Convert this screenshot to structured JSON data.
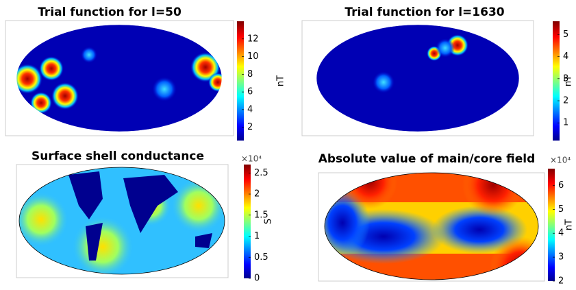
{
  "panels": [
    {
      "title": "Trial function for l=50",
      "clim": [
        0.5,
        14
      ],
      "ticks": [
        2,
        4,
        6,
        8,
        10,
        12
      ],
      "unit": "nT"
    },
    {
      "title": "Trial function for l=1630",
      "clim": [
        0.2,
        5.6
      ],
      "ticks": [
        1,
        2,
        3,
        4,
        5
      ],
      "unit": "nT"
    },
    {
      "title": "Surface shell conductance",
      "clim": [
        0,
        2.7
      ],
      "ticks": [
        0,
        0.5,
        1,
        1.5,
        2,
        2.5
      ],
      "unit": "S",
      "exponent": "×10⁴"
    },
    {
      "title": "Absolute value of main/core field",
      "clim": [
        2,
        6.7
      ],
      "ticks": [
        2,
        3,
        4,
        5,
        6
      ],
      "unit": "nT",
      "exponent": "×10⁴"
    }
  ]
}
